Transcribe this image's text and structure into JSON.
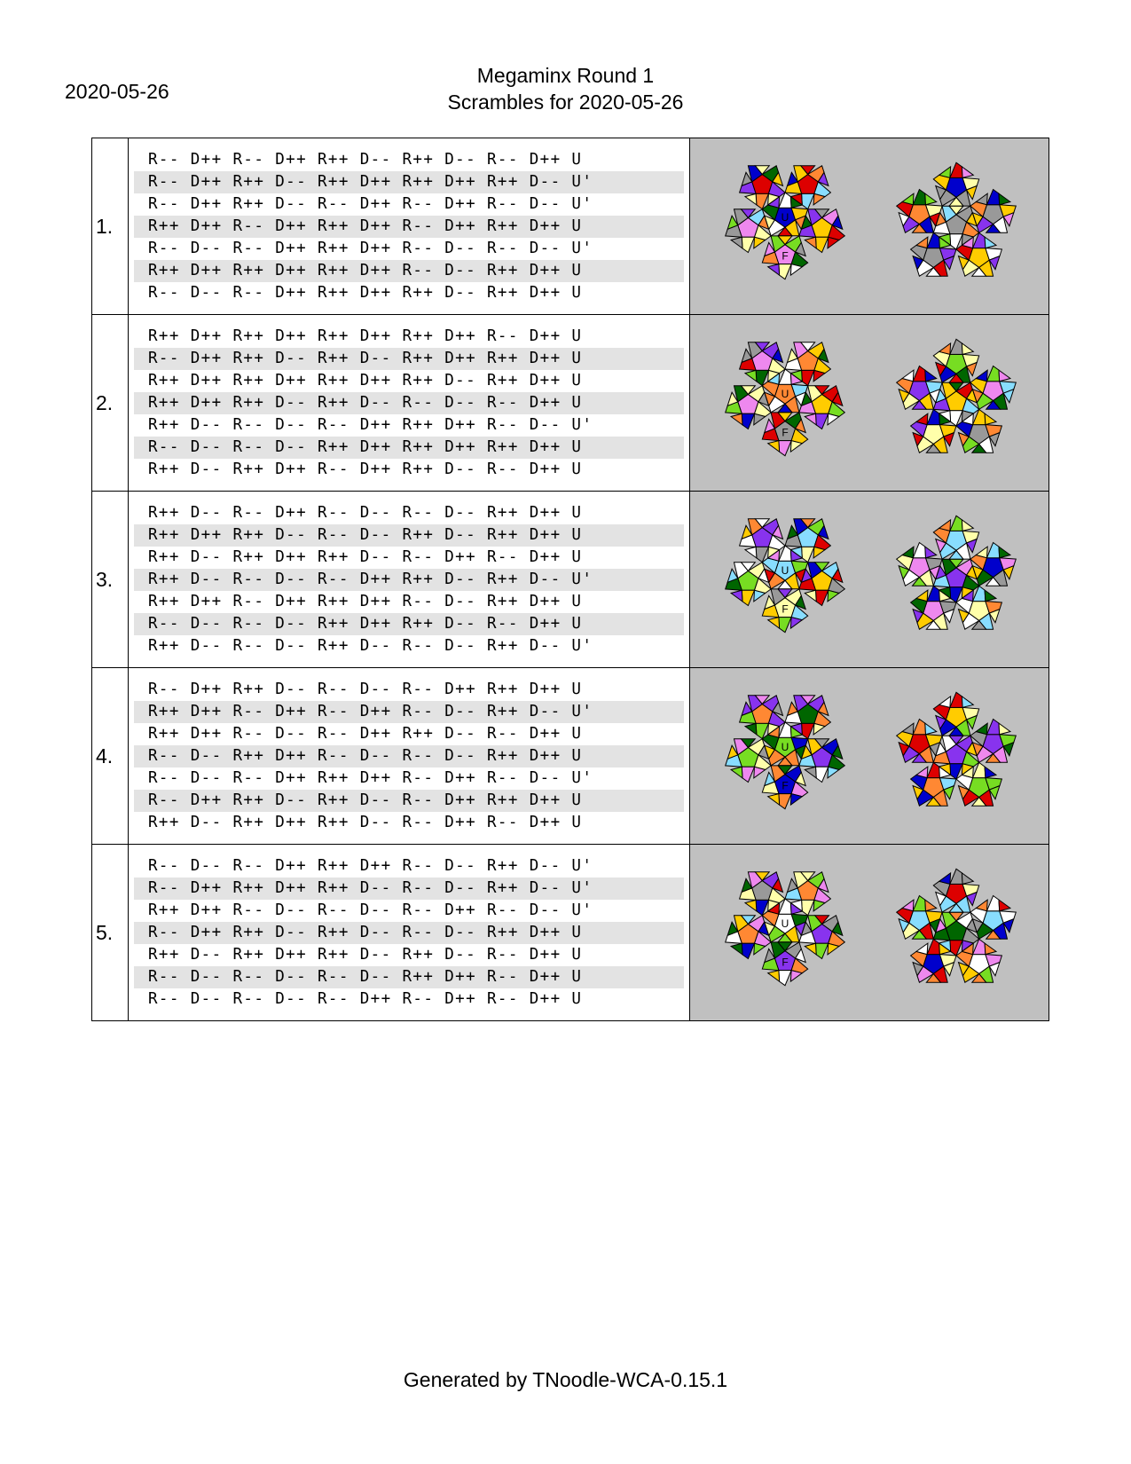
{
  "header": {
    "date": "2020-05-26",
    "title": "Megaminx Round 1",
    "subtitle": "Scrambles for 2020-05-26"
  },
  "scrambles": [
    {
      "number": "1.",
      "lines": [
        "R-- D++ R-- D++ R++ D-- R++ D-- R-- D++ U",
        "R-- D++ R++ D-- R++ D++ R++ D++ R++ D-- U'",
        "R-- D++ R++ D-- R-- D++ R-- D++ R-- D-- U'",
        "R++ D++ R-- D++ R++ D++ R-- D++ R++ D++ U",
        "R-- D-- R-- D++ R++ D++ R-- D-- R-- D-- U'",
        "R++ D++ R++ D++ R++ D++ R-- D-- R++ D++ U",
        "R-- D-- R-- D++ R++ D++ R++ D-- R++ D++ U"
      ],
      "u_label": "U",
      "f_label": "F",
      "u_color": "#0000cc",
      "f_color": "#ee88ee"
    },
    {
      "number": "2.",
      "lines": [
        "R++ D++ R++ D++ R++ D++ R++ D++ R-- D++ U",
        "R-- D++ R++ D-- R++ D-- R++ D++ R++ D++ U",
        "R++ D++ R++ D++ R++ D++ R++ D-- R++ D++ U",
        "R++ D++ R++ D-- R++ D-- R-- D-- R-- D++ U",
        "R++ D-- R-- D-- R-- D++ R++ D++ R-- D-- U'",
        "R-- D-- R-- D-- R++ D++ R++ D++ R++ D++ U",
        "R++ D-- R++ D++ R-- D++ R++ D-- R-- D++ U"
      ],
      "u_label": "U",
      "f_label": "F",
      "u_color": "#ff8833",
      "f_color": "#999999"
    },
    {
      "number": "3.",
      "lines": [
        "R++ D-- R-- D++ R-- D-- R-- D-- R++ D++ U",
        "R++ D++ R++ D-- R-- D-- R++ D-- R++ D++ U",
        "R++ D-- R++ D++ R++ D-- R-- D++ R-- D++ U",
        "R++ D-- R-- D-- R-- D++ R++ D-- R++ D-- U'",
        "R++ D++ R-- D++ R++ D++ R-- D-- R++ D++ U",
        "R-- D-- R-- D-- R++ D++ R++ D-- R-- D++ U",
        "R++ D-- R-- D-- R++ D-- R-- D-- R++ D-- U'"
      ],
      "u_label": "U",
      "f_label": "F",
      "u_color": "#88ddff",
      "f_color": "#ffffaa"
    },
    {
      "number": "4.",
      "lines": [
        "R-- D++ R++ D-- R-- D-- R-- D++ R++ D++ U",
        "R++ D++ R-- D++ R-- D++ R-- D-- R++ D-- U'",
        "R++ D++ R-- D-- R-- D++ R++ D-- R-- D++ U",
        "R-- D-- R++ D++ R-- D-- R-- D-- R++ D++ U",
        "R-- D-- R-- D++ R++ D++ R-- D++ R-- D-- U'",
        "R-- D++ R++ D-- R++ D-- R-- D++ R++ D++ U",
        "R++ D-- R++ D++ R++ D-- R-- D++ R-- D++ U"
      ],
      "u_label": "U",
      "f_label": "F",
      "u_color": "#77dd22",
      "f_color": "#0000cc"
    },
    {
      "number": "5.",
      "lines": [
        "R-- D-- R-- D++ R++ D++ R-- D-- R++ D-- U'",
        "R-- D++ R++ D++ R++ D-- R-- D-- R++ D-- U'",
        "R++ D++ R-- D-- R-- D-- R-- D++ R-- D-- U'",
        "R-- D++ R++ D-- R++ D-- R-- D-- R++ D++ U",
        "R++ D-- R++ D++ R++ D-- R++ D-- R-- D++ U",
        "R-- D-- R-- D-- R-- D-- R++ D++ R-- D++ U",
        "R-- D-- R-- D-- R-- D++ R-- D++ R-- D++ U"
      ],
      "u_label": "U",
      "f_label": "F",
      "u_color": "#ffffff",
      "f_color": "#8833ee"
    }
  ],
  "palette": [
    "#ffffff",
    "#0000cc",
    "#dd0000",
    "#006600",
    "#8833ee",
    "#ffcc00",
    "#999999",
    "#88ddff",
    "#ffffaa",
    "#ee88ee",
    "#77dd22",
    "#ff8833"
  ],
  "footer": "Generated by TNoodle-WCA-0.15.1"
}
